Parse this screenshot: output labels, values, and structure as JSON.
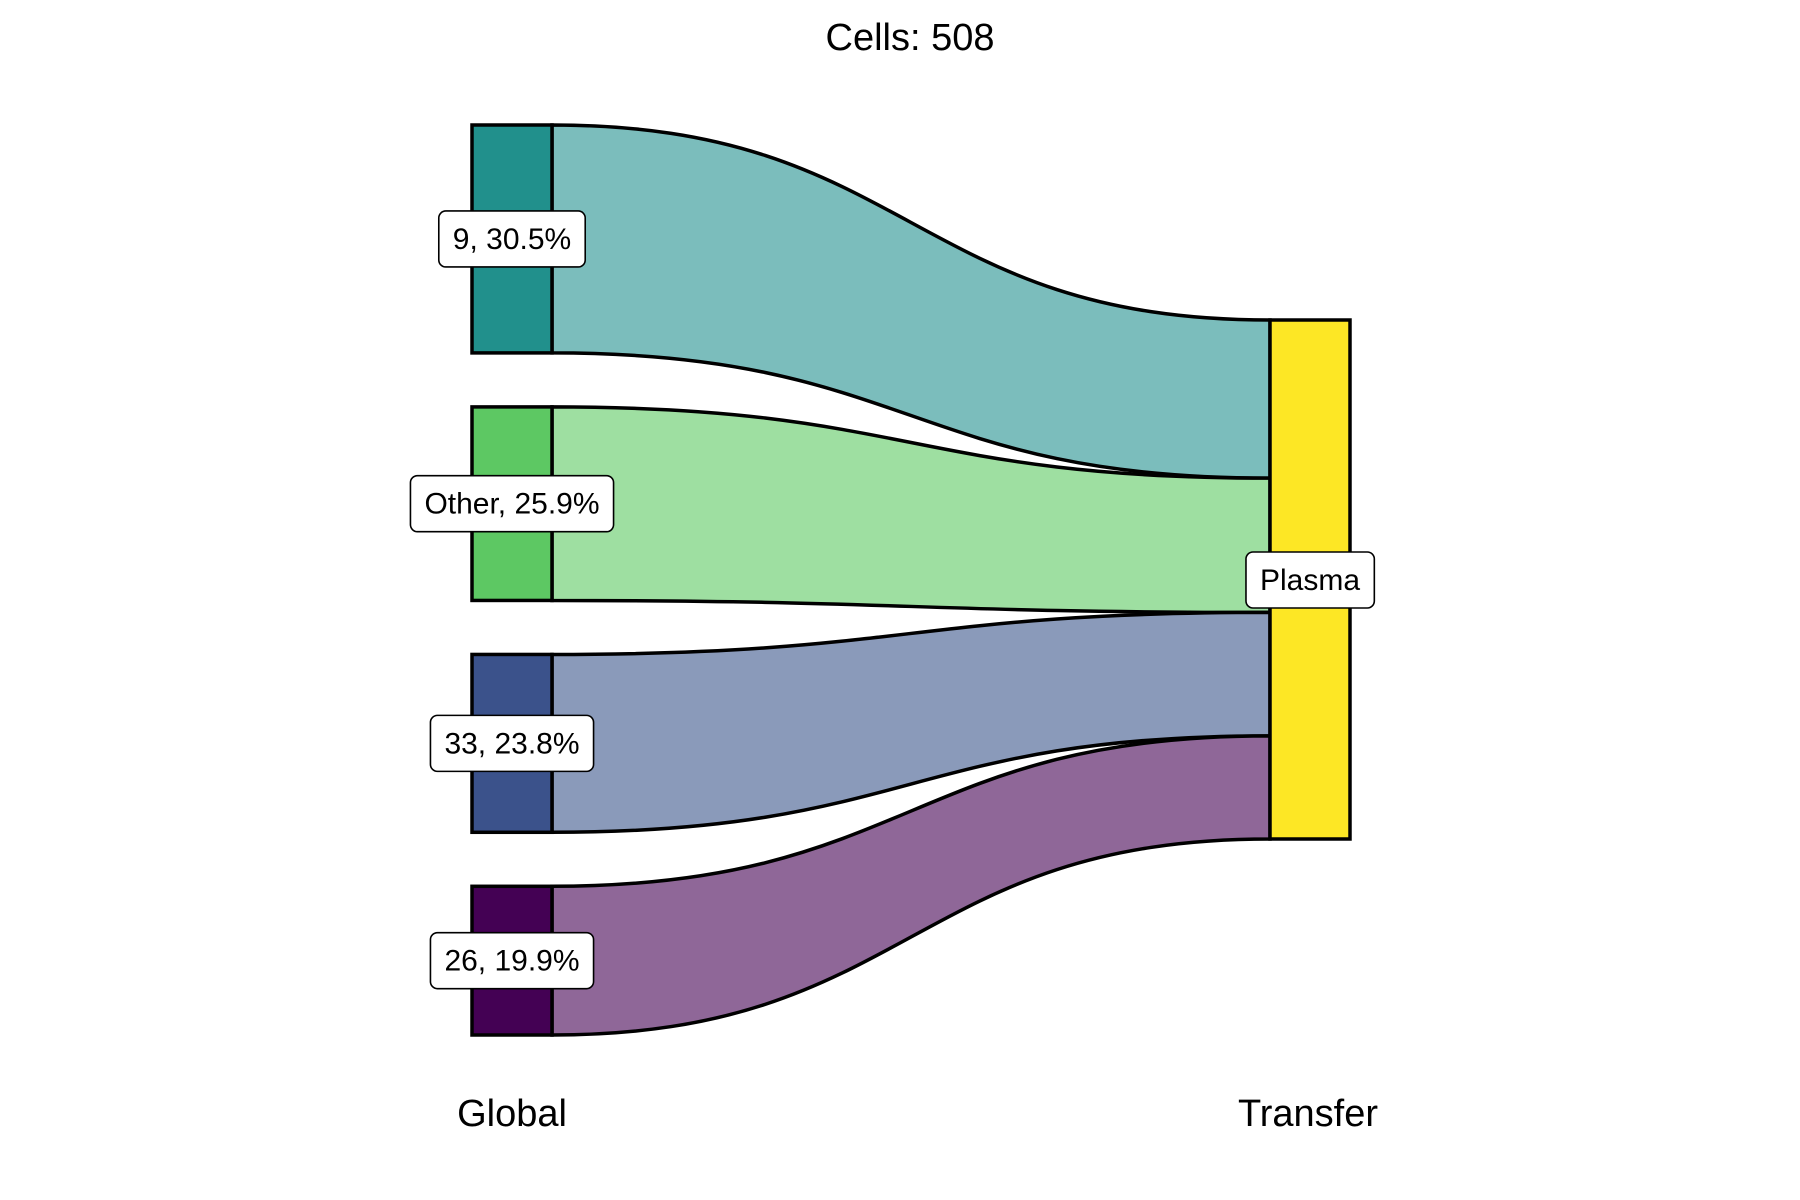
{
  "chart_data": {
    "type": "sankey",
    "title": "Cells:  508",
    "total": 508,
    "axes": [
      "Global",
      "Transfer"
    ],
    "left_nodes": [
      {
        "label": "9, 30.5%",
        "category": "9",
        "percent": 30.5,
        "color": "#21908C",
        "flow_color": "#7BBDBC"
      },
      {
        "label": "Other, 25.9%",
        "category": "Other",
        "percent": 25.9,
        "color": "#5DC863",
        "flow_color": "#9EDFA1"
      },
      {
        "label": "33, 23.8%",
        "category": "33",
        "percent": 23.8,
        "color": "#3B528B",
        "flow_color": "#8A9ABA"
      },
      {
        "label": "26, 19.9%",
        "category": "26",
        "percent": 19.9,
        "color": "#440154",
        "flow_color": "#8F6798"
      }
    ],
    "right_nodes": [
      {
        "label": "Plasma",
        "percent": 100,
        "color": "#FDE725"
      }
    ],
    "flows": [
      {
        "from": "9",
        "to": "Plasma",
        "percent": 30.5
      },
      {
        "from": "Other",
        "to": "Plasma",
        "percent": 25.9
      },
      {
        "from": "33",
        "to": "Plasma",
        "percent": 23.8
      },
      {
        "from": "26",
        "to": "Plasma",
        "percent": 19.9
      }
    ]
  }
}
